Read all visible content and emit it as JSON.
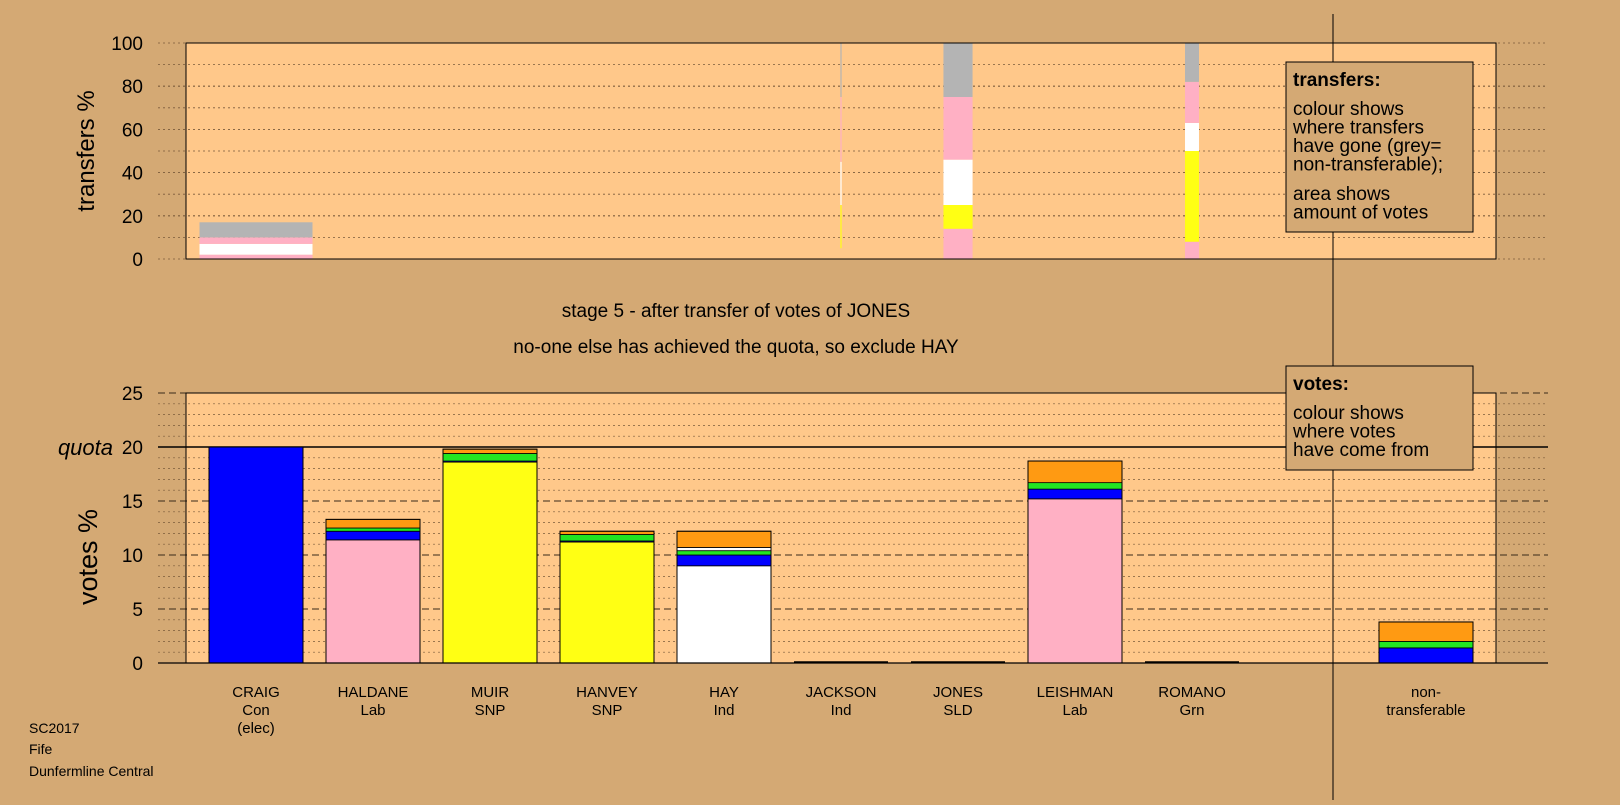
{
  "colors": {
    "page_bg": "#d4a974",
    "plot_bg": "#ffc88a",
    "Con": "#0000ff",
    "Lab": "#ffb0c4",
    "SNP": "#ffff14",
    "Ind": "#ffffff",
    "SLD": "#ff9a12",
    "Grn": "#22e622",
    "nontransferable": "#b4b4b4"
  },
  "header": {
    "stage_text": "stage 5 - after transfer of votes of JONES",
    "decision_text": "no-one else has achieved the quota, so exclude HAY"
  },
  "footer": {
    "lines": [
      "SC2017",
      "Fife",
      "Dunfermline Central"
    ]
  },
  "legend_transfers": {
    "title": "transfers:",
    "lines_a": [
      "colour shows",
      "where transfers",
      "have gone (grey=",
      "non-transferable);"
    ],
    "lines_b": [
      "area shows",
      "amount of votes"
    ]
  },
  "legend_votes": {
    "title": "votes:",
    "lines": [
      "colour shows",
      "where votes",
      "have come from"
    ]
  },
  "chart_data": [
    {
      "type": "bar",
      "name": "transfers",
      "ylabel": "transfers %",
      "ylim": [
        0,
        100
      ],
      "yticks": [
        0,
        20,
        40,
        60,
        80,
        100
      ],
      "grid": true,
      "categories": [
        "CRAIG",
        "HALDANE",
        "MUIR",
        "HANVEY",
        "HAY",
        "JACKSON",
        "JONES",
        "LEISHMAN",
        "ROMANO"
      ],
      "note": "bar width proportional to the amount of votes transferred",
      "columns": [
        {
          "candidate": "CRAIG",
          "width_share": 0.97,
          "segments": [
            {
              "to": "Lab",
              "from": 0,
              "to_value": 2
            },
            {
              "to": "Ind",
              "from": 2,
              "to_value": 7
            },
            {
              "to": "Lab",
              "from": 7,
              "to_value": 10
            },
            {
              "to": "nontransferable",
              "from": 10,
              "to_value": 17
            }
          ]
        },
        {
          "candidate": "JACKSON",
          "width_share": 0.01,
          "segments": [
            {
              "to": "SNP",
              "from": 5,
              "to_value": 25
            },
            {
              "to": "Ind",
              "from": 25,
              "to_value": 45
            },
            {
              "to": "Lab",
              "from": 45,
              "to_value": 75
            },
            {
              "to": "nontransferable",
              "from": 75,
              "to_value": 100
            }
          ]
        },
        {
          "candidate": "JONES",
          "width_share": 0.25,
          "segments": [
            {
              "to": "Lab",
              "from": 0,
              "to_value": 14
            },
            {
              "to": "SNP",
              "from": 14,
              "to_value": 25
            },
            {
              "to": "Ind",
              "from": 25,
              "to_value": 46
            },
            {
              "to": "Lab",
              "from": 46,
              "to_value": 75
            },
            {
              "to": "nontransferable",
              "from": 75,
              "to_value": 100
            }
          ]
        },
        {
          "candidate": "ROMANO",
          "width_share": 0.12,
          "segments": [
            {
              "to": "Lab",
              "from": 0,
              "to_value": 8
            },
            {
              "to": "SNP",
              "from": 8,
              "to_value": 50
            },
            {
              "to": "Ind",
              "from": 50,
              "to_value": 63
            },
            {
              "to": "Lab",
              "from": 63,
              "to_value": 82
            },
            {
              "to": "nontransferable",
              "from": 82,
              "to_value": 100
            }
          ]
        }
      ]
    },
    {
      "type": "bar",
      "name": "votes",
      "stacked": true,
      "ylabel": "votes %",
      "ylim": [
        0,
        25
      ],
      "yticks": [
        0,
        5,
        10,
        15,
        20,
        25
      ],
      "quota": 20,
      "quota_label": "quota",
      "grid": true,
      "candidates": [
        {
          "name": "CRAIG",
          "party": "Con",
          "note": "(elec)",
          "segments": [
            {
              "from": "Con",
              "value": 20.0
            }
          ]
        },
        {
          "name": "HALDANE",
          "party": "Lab",
          "segments": [
            {
              "from": "Lab",
              "value": 11.4
            },
            {
              "from": "Con",
              "value": 0.8
            },
            {
              "from": "Grn",
              "value": 0.3
            },
            {
              "from": "SLD",
              "value": 0.8
            }
          ]
        },
        {
          "name": "MUIR",
          "party": "SNP",
          "segments": [
            {
              "from": "SNP",
              "value": 18.6
            },
            {
              "from": "Con",
              "value": 0.1
            },
            {
              "from": "Grn",
              "value": 0.7
            },
            {
              "from": "SLD",
              "value": 0.4
            }
          ]
        },
        {
          "name": "HANVEY",
          "party": "SNP",
          "segments": [
            {
              "from": "SNP",
              "value": 11.2
            },
            {
              "from": "Con",
              "value": 0.1
            },
            {
              "from": "Grn",
              "value": 0.6
            },
            {
              "from": "SLD",
              "value": 0.3
            }
          ]
        },
        {
          "name": "HAY",
          "party": "Ind",
          "segments": [
            {
              "from": "Ind",
              "value": 9.0
            },
            {
              "from": "Con",
              "value": 1.0
            },
            {
              "from": "Grn",
              "value": 0.4
            },
            {
              "from": "Ind",
              "value": 0.3
            },
            {
              "from": "SLD",
              "value": 1.5
            }
          ]
        },
        {
          "name": "JACKSON",
          "party": "Ind",
          "segments": []
        },
        {
          "name": "JONES",
          "party": "SLD",
          "segments": []
        },
        {
          "name": "LEISHMAN",
          "party": "Lab",
          "segments": [
            {
              "from": "Lab",
              "value": 15.2
            },
            {
              "from": "Con",
              "value": 0.9
            },
            {
              "from": "Grn",
              "value": 0.6
            },
            {
              "from": "SLD",
              "value": 2.0
            }
          ]
        },
        {
          "name": "ROMANO",
          "party": "Grn",
          "segments": []
        }
      ],
      "nontransferable": {
        "label": [
          "non-",
          "transferable"
        ],
        "segments": [
          {
            "from": "Con",
            "value": 1.4
          },
          {
            "from": "Grn",
            "value": 0.6
          },
          {
            "from": "SLD",
            "value": 1.8
          }
        ]
      }
    }
  ]
}
